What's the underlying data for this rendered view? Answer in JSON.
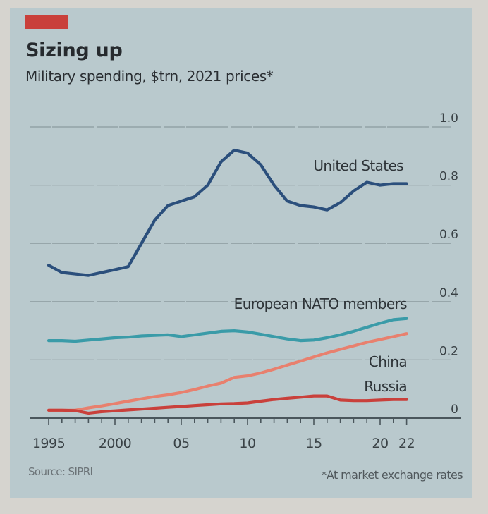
{
  "chart_data": {
    "type": "line",
    "title": "Sizing up",
    "subtitle": "Military spending, $trn, 2021 prices*",
    "xlabel": "",
    "ylabel": "$trn",
    "xlim": [
      1995,
      2022
    ],
    "ylim": [
      0,
      1.0
    ],
    "grid": true,
    "y_axis_side": "right",
    "yticks": [
      0,
      0.2,
      0.4,
      0.6,
      0.8,
      1.0
    ],
    "ytick_labels": [
      "0",
      "0.2",
      "0.4",
      "0.6",
      "0.8",
      "1.0"
    ],
    "xticks": [
      1995,
      2000,
      2005,
      2010,
      2015,
      2020,
      2022
    ],
    "xtick_labels": [
      "1995",
      "2000",
      "05",
      "10",
      "15",
      "20",
      "22"
    ],
    "minor_xticks_every": 1,
    "x": [
      1995,
      1996,
      1997,
      1998,
      1999,
      2000,
      2001,
      2002,
      2003,
      2004,
      2005,
      2006,
      2007,
      2008,
      2009,
      2010,
      2011,
      2012,
      2013,
      2014,
      2015,
      2016,
      2017,
      2018,
      2019,
      2020,
      2021,
      2022
    ],
    "series": [
      {
        "name": "United States",
        "label": "United States",
        "color": "#2b4f7c",
        "values": [
          0.525,
          0.5,
          0.495,
          0.49,
          0.5,
          0.51,
          0.52,
          0.6,
          0.68,
          0.73,
          0.745,
          0.76,
          0.8,
          0.88,
          0.92,
          0.91,
          0.87,
          0.8,
          0.745,
          0.73,
          0.725,
          0.715,
          0.74,
          0.78,
          0.81,
          0.8,
          0.805,
          0.805
        ]
      },
      {
        "name": "European NATO members",
        "label": "European NATO members",
        "color": "#3a9ba8",
        "values": [
          0.266,
          0.266,
          0.264,
          0.268,
          0.272,
          0.276,
          0.278,
          0.282,
          0.284,
          0.286,
          0.28,
          0.286,
          0.292,
          0.298,
          0.3,
          0.296,
          0.288,
          0.28,
          0.272,
          0.266,
          0.268,
          0.276,
          0.286,
          0.298,
          0.312,
          0.326,
          0.338,
          0.342
        ]
      },
      {
        "name": "China",
        "label": "China",
        "color": "#e8806e",
        "values": [
          0.027,
          0.027,
          0.027,
          0.035,
          0.042,
          0.05,
          0.058,
          0.066,
          0.074,
          0.08,
          0.088,
          0.098,
          0.11,
          0.12,
          0.14,
          0.145,
          0.155,
          0.168,
          0.182,
          0.196,
          0.21,
          0.224,
          0.236,
          0.248,
          0.26,
          0.27,
          0.28,
          0.29
        ]
      },
      {
        "name": "Russia",
        "label": "Russia",
        "color": "#c9403b",
        "values": [
          0.027,
          0.027,
          0.026,
          0.017,
          0.022,
          0.025,
          0.028,
          0.031,
          0.034,
          0.037,
          0.04,
          0.043,
          0.046,
          0.049,
          0.05,
          0.052,
          0.058,
          0.064,
          0.068,
          0.072,
          0.076,
          0.076,
          0.062,
          0.06,
          0.06,
          0.062,
          0.064,
          0.064
        ]
      }
    ]
  },
  "header": {
    "title": "Sizing up",
    "subtitle": "Military spending, $trn, 2021 prices*"
  },
  "footer": {
    "source": "Source: SIPRI",
    "note": "*At market exchange rates"
  },
  "colors": {
    "panel_background": "#b9c9cd",
    "accent_tag": "#c9403b",
    "gridline": "#8c9a9e",
    "axis": "#4a565c",
    "text": "#2a2e32"
  }
}
